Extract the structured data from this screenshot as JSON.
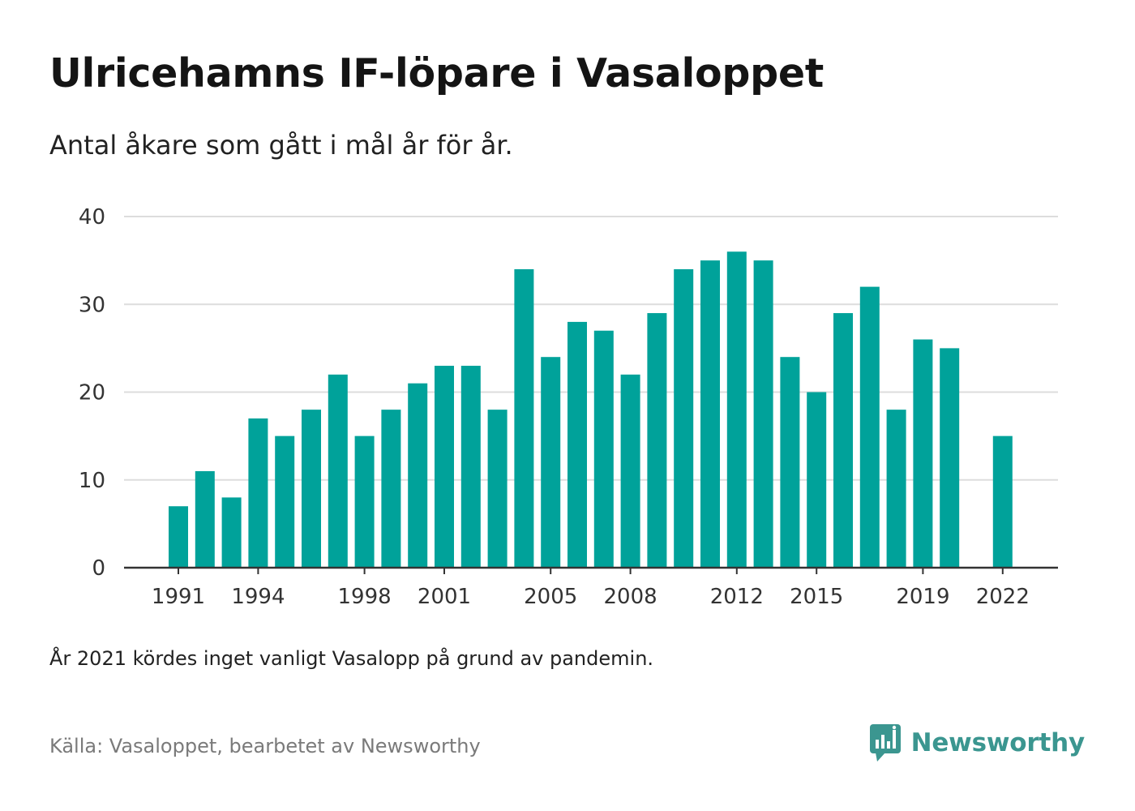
{
  "header": {
    "title": "Ulricehamns IF-löpare i Vasaloppet",
    "subtitle": "Antal åkare som gått i mål år för år."
  },
  "footer": {
    "note": "År 2021 kördes inget vanligt Vasalopp på grund av pandemin.",
    "source": "Källa: Vasaloppet, bearbetet av Newsworthy",
    "brand": "Newsworthy",
    "brand_icon": "newsworthy-logo-icon"
  },
  "colors": {
    "bar": "#00a29a",
    "brand": "#3b9690",
    "grid": "#dddddd",
    "axis": "#333333"
  },
  "chart_data": {
    "type": "bar",
    "title": "Ulricehamns IF-löpare i Vasaloppet",
    "subtitle": "Antal åkare som gått i mål år för år.",
    "xlabel": "",
    "ylabel": "",
    "x": [
      1991,
      1992,
      1993,
      1994,
      1995,
      1996,
      1997,
      1998,
      1999,
      2000,
      2001,
      2002,
      2003,
      2004,
      2005,
      2006,
      2007,
      2008,
      2009,
      2010,
      2011,
      2012,
      2013,
      2014,
      2015,
      2016,
      2017,
      2018,
      2019,
      2020,
      2021,
      2022
    ],
    "values": [
      7,
      11,
      8,
      17,
      15,
      18,
      22,
      15,
      18,
      21,
      23,
      23,
      18,
      34,
      24,
      28,
      27,
      22,
      29,
      34,
      35,
      36,
      35,
      24,
      20,
      29,
      32,
      18,
      26,
      25,
      null,
      15
    ],
    "x_tick_labels": [
      1991,
      1994,
      1998,
      2001,
      2005,
      2008,
      2012,
      2015,
      2019,
      2022
    ],
    "y_ticks": [
      0,
      10,
      20,
      30,
      40
    ],
    "ylim": [
      0,
      40
    ],
    "xlim": [
      1991,
      2022
    ],
    "grid": "horizontal",
    "legend": "none"
  }
}
